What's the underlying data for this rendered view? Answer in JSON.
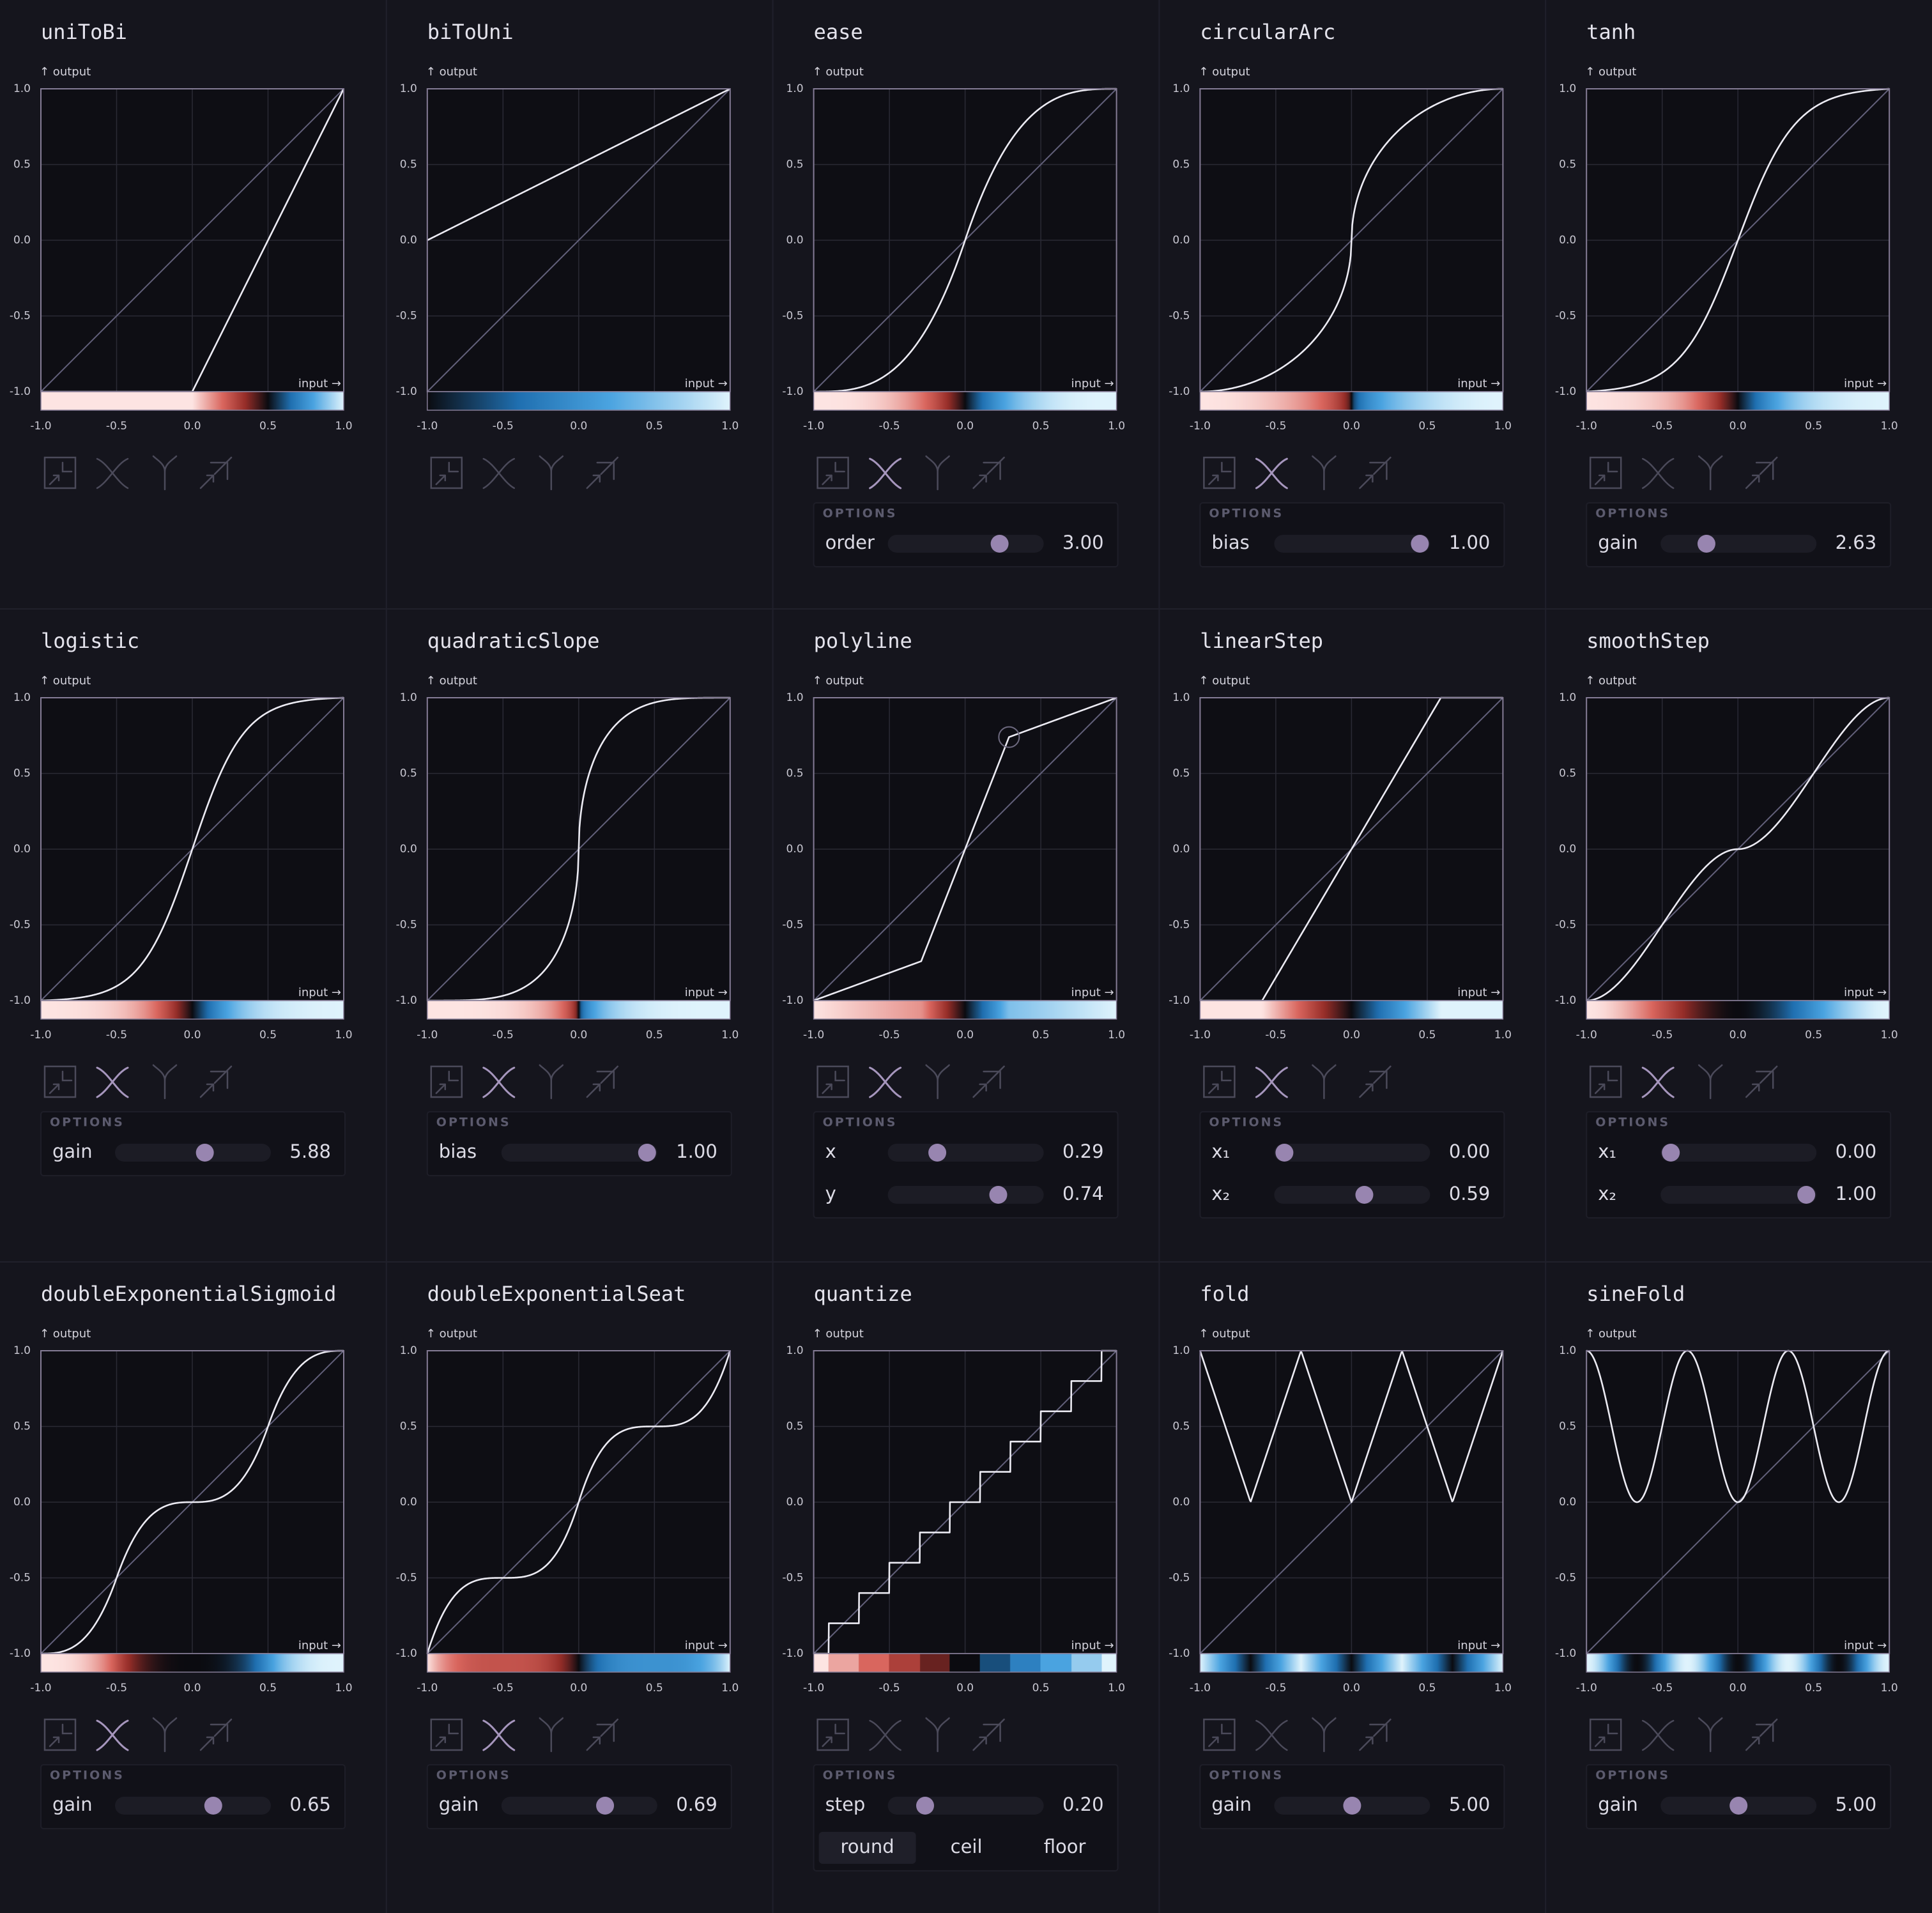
{
  "axis_ticks": [
    {
      "value": -1,
      "label": "-1.0"
    },
    {
      "value": -0.5,
      "label": "-0.5"
    },
    {
      "value": 0,
      "label": "0.0"
    },
    {
      "value": 0.5,
      "label": "0.5"
    },
    {
      "value": 1,
      "label": "1.0"
    }
  ],
  "y_label": "↑ output",
  "x_label": "input →",
  "options_heading": "OPTIONS",
  "panels": [
    {
      "title": "uniToBi",
      "options": []
    },
    {
      "title": "biToUni",
      "options": []
    },
    {
      "title": "ease",
      "icon_active": 1,
      "options": [
        {
          "name": "order",
          "value": {
            "value": 3,
            "label": "3.00"
          }
        }
      ]
    },
    {
      "title": "circularArc",
      "icon_active": 1,
      "options": [
        {
          "name": "bias",
          "value": {
            "value": 1,
            "label": "1.00"
          }
        }
      ]
    },
    {
      "title": "tanh",
      "options": [
        {
          "name": "gain",
          "value": {
            "value": 2.63,
            "label": "2.63"
          }
        }
      ]
    },
    {
      "title": "logistic",
      "icon_active": 1,
      "options": [
        {
          "name": "gain",
          "value": {
            "value": 5.88,
            "label": "5.88"
          }
        }
      ]
    },
    {
      "title": "quadraticSlope",
      "icon_active": 1,
      "options": [
        {
          "name": "bias",
          "value": {
            "value": 1,
            "label": "1.00"
          }
        }
      ]
    },
    {
      "title": "polyline",
      "icon_active": 1,
      "options": [
        {
          "name": "x",
          "value": {
            "value": 0.29,
            "label": "0.29"
          }
        },
        {
          "name": "y",
          "value": {
            "value": 0.74,
            "label": "0.74"
          }
        }
      ]
    },
    {
      "title": "linearStep",
      "icon_active": 1,
      "options": [
        {
          "name": "x₁",
          "value": {
            "value": 0,
            "label": "0.00"
          }
        },
        {
          "name": "x₂",
          "value": {
            "value": 0.59,
            "label": "0.59"
          }
        }
      ]
    },
    {
      "title": "smoothStep",
      "icon_active": 1,
      "options": [
        {
          "name": "x₁",
          "value": {
            "value": 0,
            "label": "0.00"
          }
        },
        {
          "name": "x₂",
          "value": {
            "value": 1,
            "label": "1.00"
          }
        }
      ]
    },
    {
      "title": "doubleExponentialSigmoid",
      "icon_active": 1,
      "options": [
        {
          "name": "gain",
          "value": {
            "value": 0.65,
            "label": "0.65"
          }
        }
      ]
    },
    {
      "title": "doubleExponentialSeat",
      "icon_active": 1,
      "options": [
        {
          "name": "gain",
          "value": {
            "value": 0.69,
            "label": "0.69"
          }
        }
      ]
    },
    {
      "title": "quantize",
      "options": [
        {
          "name": "step",
          "value": {
            "value": 0.2,
            "label": "0.20"
          }
        }
      ],
      "modes": [
        "round",
        "ceil",
        "floor"
      ],
      "active_mode": 0
    },
    {
      "title": "fold",
      "options": [
        {
          "name": "gain",
          "value": {
            "value": 5,
            "label": "5.00"
          }
        }
      ]
    },
    {
      "title": "sineFold",
      "options": [
        {
          "name": "gain",
          "value": {
            "value": 5,
            "label": "5.00"
          }
        }
      ]
    }
  ]
}
